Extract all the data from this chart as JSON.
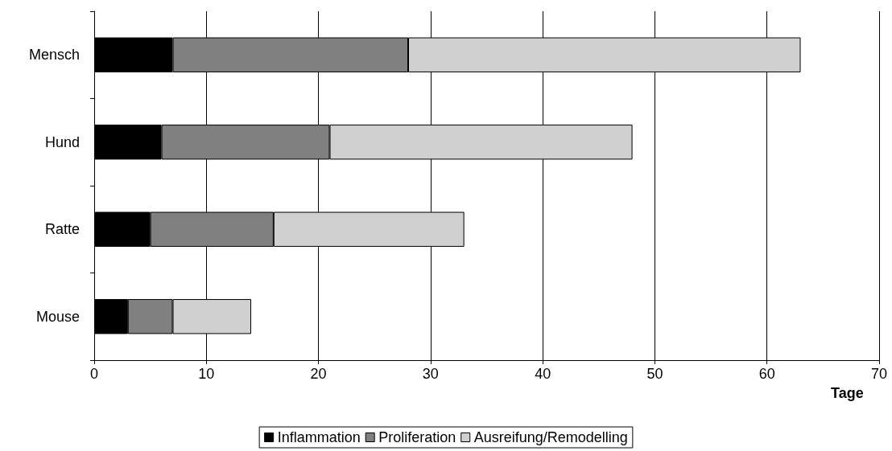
{
  "chart_data": {
    "type": "bar",
    "orientation": "horizontal",
    "stacked": true,
    "xlabel": "Tage",
    "categories": [
      "Mensch",
      "Hund",
      "Ratte",
      "Mouse"
    ],
    "series": [
      {
        "name": "Inflammation",
        "color": "#000000",
        "values": [
          7,
          6,
          5,
          3
        ]
      },
      {
        "name": "Proliferation",
        "color": "#808080",
        "values": [
          21,
          15,
          11,
          4
        ]
      },
      {
        "name": "Ausreifung/Remodelling",
        "color": "#d0d0d0",
        "values": [
          35,
          27,
          17,
          7
        ]
      }
    ],
    "xlim": [
      0,
      70
    ],
    "xticks": [
      0,
      10,
      20,
      30,
      40,
      50,
      60,
      70
    ],
    "grid": "x",
    "legend": "bottom"
  }
}
